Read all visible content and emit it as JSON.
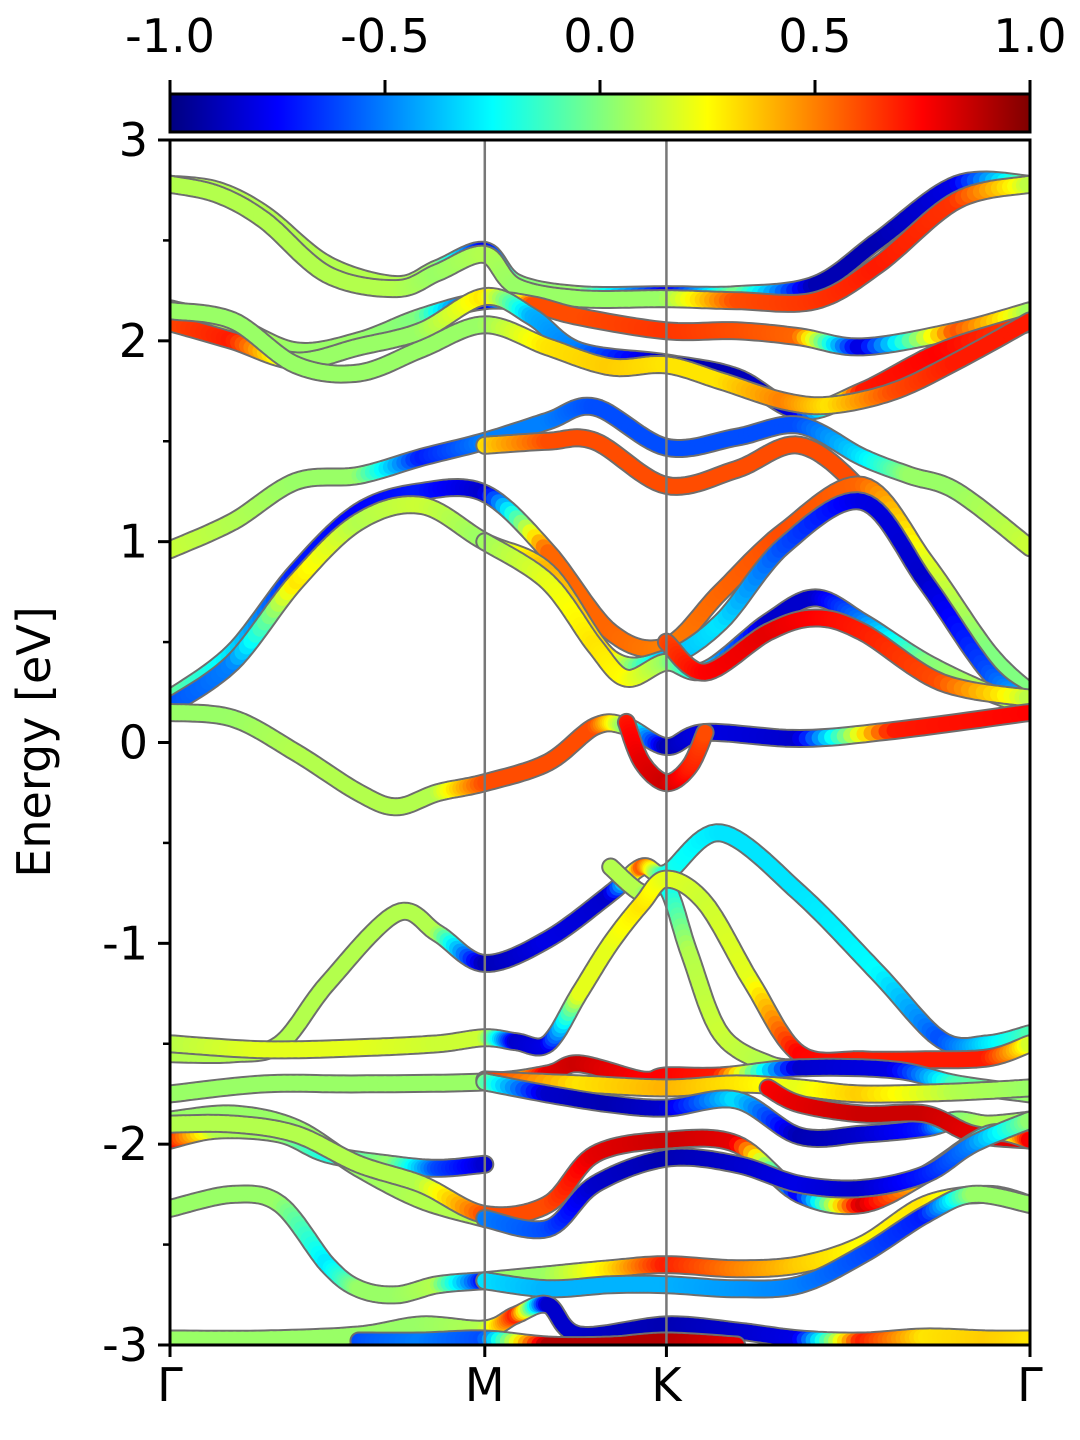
{
  "chart_data": {
    "type": "line",
    "ylabel": "Energy [eV]",
    "ylim": [
      -3,
      3
    ],
    "yticks": [
      "3",
      "2",
      "1",
      "0",
      "-1",
      "-2",
      "-3"
    ],
    "ytick_values": [
      3,
      2,
      1,
      0,
      -1,
      -2,
      -3
    ],
    "xlim": [
      0,
      2.732
    ],
    "xticks": [
      "Γ",
      "M",
      "K",
      "Γ"
    ],
    "xtick_values": [
      0,
      1.0,
      1.577,
      2.732
    ],
    "vlines_at": [
      1.0,
      1.577
    ],
    "colorbar": {
      "colormap": "jet",
      "range": [
        -1.0,
        1.0
      ],
      "labels": [
        "-1.0",
        "-0.5",
        "0.0",
        "0.5",
        "1.0"
      ],
      "label_values": [
        -1.0,
        -0.5,
        0.0,
        0.5,
        1.0
      ],
      "placement": "top"
    },
    "series": [
      {
        "x": [
          0,
          0.15,
          0.3,
          0.5,
          0.72,
          0.85,
          1.0,
          1.1,
          1.3,
          1.577,
          1.8,
          2.05,
          2.25,
          2.5,
          2.732
        ],
        "y": [
          2.78,
          2.75,
          2.63,
          2.38,
          2.28,
          2.36,
          2.45,
          2.29,
          2.23,
          2.23,
          2.23,
          2.28,
          2.5,
          2.78,
          2.78
        ],
        "c": [
          0.1,
          0.1,
          0.1,
          0.1,
          0.1,
          0.05,
          -0.8,
          0.0,
          0.05,
          -0.8,
          0.0,
          -0.9,
          -0.9,
          -0.8,
          0.1
        ]
      },
      {
        "x": [
          0,
          0.15,
          0.3,
          0.5,
          0.72,
          0.85,
          1.0,
          1.1,
          1.3,
          1.577,
          1.8,
          2.05,
          2.25,
          2.5,
          2.732
        ],
        "y": [
          2.78,
          2.73,
          2.6,
          2.33,
          2.26,
          2.34,
          2.43,
          2.27,
          2.21,
          2.21,
          2.2,
          2.2,
          2.38,
          2.7,
          2.78
        ],
        "c": [
          0.1,
          0.1,
          0.1,
          0.1,
          0.1,
          0.05,
          0.1,
          0.05,
          0.05,
          0.05,
          0.6,
          0.65,
          0.7,
          0.65,
          0.1
        ]
      },
      {
        "x": [
          0,
          0.2,
          0.4,
          0.6,
          0.8,
          1.0,
          1.15,
          1.3,
          1.577,
          1.8,
          2.0,
          2.2,
          2.5,
          2.732
        ],
        "y": [
          2.16,
          2.08,
          1.95,
          2.0,
          2.12,
          2.2,
          2.18,
          2.12,
          2.05,
          2.05,
          2.02,
          1.97,
          2.05,
          2.15
        ],
        "c": [
          0.05,
          0.1,
          0.05,
          0.05,
          0.0,
          -0.85,
          0.6,
          0.6,
          0.65,
          0.6,
          0.55,
          -0.85,
          0.6,
          0.05
        ]
      },
      {
        "x": [
          0,
          0.2,
          0.4,
          0.6,
          0.8,
          1.0,
          1.15,
          1.3,
          1.577,
          1.8,
          2.0,
          2.2,
          2.45,
          2.732
        ],
        "y": [
          2.09,
          2.0,
          1.9,
          1.97,
          2.05,
          2.22,
          2.12,
          1.95,
          1.89,
          1.82,
          1.65,
          1.75,
          1.95,
          2.09
        ],
        "c": [
          0.6,
          0.7,
          0.05,
          0.05,
          0.05,
          0.3,
          -0.4,
          -0.5,
          -0.9,
          -0.9,
          -0.8,
          0.7,
          0.75,
          0.6
        ]
      },
      {
        "x": [
          0,
          0.2,
          0.4,
          0.6,
          0.8,
          1.0,
          1.2,
          1.4,
          1.577,
          1.75,
          1.95,
          2.1,
          2.3,
          2.5,
          2.732
        ],
        "y": [
          2.15,
          2.1,
          1.88,
          1.84,
          1.96,
          2.08,
          1.97,
          1.87,
          1.88,
          1.8,
          1.7,
          1.68,
          1.75,
          1.9,
          2.1
        ],
        "c": [
          0.05,
          0.05,
          0.05,
          0.05,
          0.05,
          0.05,
          0.3,
          0.35,
          0.3,
          0.3,
          0.5,
          0.3,
          0.6,
          0.7,
          0.7
        ]
      },
      {
        "x": [
          0,
          0.2,
          0.4,
          0.6,
          0.8,
          1.0,
          1.2,
          1.35,
          1.577,
          1.8,
          2.0,
          2.2,
          2.35,
          2.5,
          2.732
        ],
        "y": [
          0.96,
          1.1,
          1.3,
          1.33,
          1.42,
          1.5,
          1.6,
          1.67,
          1.47,
          1.52,
          1.58,
          1.42,
          1.33,
          1.25,
          0.97
        ],
        "c": [
          0.15,
          0.1,
          0.05,
          0.05,
          -0.7,
          -0.5,
          -0.5,
          -0.6,
          -0.6,
          -0.6,
          -0.6,
          -0.3,
          0.05,
          0.05,
          0.15
        ]
      },
      {
        "x": [
          1.0,
          1.2,
          1.35,
          1.577,
          1.8,
          2.0,
          2.2,
          2.4,
          2.6,
          2.732
        ],
        "y": [
          1.48,
          1.5,
          1.5,
          1.28,
          1.36,
          1.48,
          1.25,
          0.85,
          0.4,
          0.22
        ],
        "c": [
          0.3,
          0.6,
          0.6,
          0.6,
          0.6,
          0.6,
          0.6,
          0.6,
          0.55,
          0.1
        ]
      },
      {
        "x": [
          0,
          0.2,
          0.4,
          0.6,
          0.8,
          1.0,
          1.2,
          1.4,
          1.577,
          1.75,
          1.95,
          2.2,
          2.4,
          2.6,
          2.732
        ],
        "y": [
          0.22,
          0.45,
          0.85,
          1.15,
          1.25,
          1.24,
          0.95,
          0.55,
          0.48,
          0.75,
          1.05,
          1.28,
          0.9,
          0.45,
          0.25
        ],
        "c": [
          0.0,
          -0.3,
          -0.7,
          -0.75,
          -0.7,
          -0.85,
          0.55,
          0.55,
          0.5,
          0.55,
          0.6,
          0.55,
          0.2,
          0.0,
          0.0
        ]
      },
      {
        "x": [
          0,
          0.2,
          0.4,
          0.6,
          0.8,
          1.0,
          1.2,
          1.4,
          1.577,
          1.75,
          1.95,
          2.2,
          2.4,
          2.6,
          2.732
        ],
        "y": [
          0.18,
          0.4,
          0.8,
          1.1,
          1.18,
          1.0,
          0.85,
          0.42,
          0.42,
          0.6,
          0.98,
          1.2,
          0.8,
          0.35,
          0.2
        ],
        "c": [
          -0.6,
          -0.5,
          0.3,
          0.1,
          0.15,
          0.05,
          0.4,
          0.3,
          -0.4,
          -0.3,
          -0.6,
          -0.8,
          -0.85,
          -0.6,
          -0.3
        ]
      },
      {
        "x": [
          1.0,
          1.2,
          1.35,
          1.45,
          1.577,
          1.7,
          1.9,
          2.05,
          2.2,
          2.4,
          2.6,
          2.732
        ],
        "y": [
          1.0,
          0.8,
          0.48,
          0.32,
          0.4,
          0.36,
          0.6,
          0.72,
          0.6,
          0.4,
          0.25,
          0.18
        ],
        "c": [
          0.05,
          0.2,
          0.3,
          0.25,
          0.05,
          -0.3,
          -0.85,
          -0.85,
          -0.5,
          0.0,
          0.1,
          0.1
        ]
      },
      {
        "x": [
          1.577,
          1.7,
          1.9,
          2.05,
          2.2,
          2.45,
          2.732
        ],
        "y": [
          0.5,
          0.35,
          0.55,
          0.62,
          0.55,
          0.3,
          0.22
        ],
        "c": [
          0.6,
          0.75,
          0.8,
          0.75,
          0.7,
          0.6,
          0.1
        ]
      },
      {
        "x": [
          0,
          0.2,
          0.4,
          0.6,
          0.72,
          0.85,
          1.0,
          1.2,
          1.35,
          1.45,
          1.577,
          1.7,
          2.0,
          2.3,
          2.732
        ],
        "y": [
          0.15,
          0.12,
          -0.05,
          -0.25,
          -0.32,
          -0.25,
          -0.2,
          -0.1,
          0.08,
          0.08,
          -0.02,
          0.05,
          0.02,
          0.06,
          0.15
        ],
        "c": [
          0.05,
          0.05,
          0.1,
          0.1,
          0.1,
          0.1,
          0.6,
          0.6,
          0.6,
          0.0,
          -0.9,
          -0.8,
          -0.85,
          0.7,
          0.75
        ]
      },
      {
        "x": [
          1.45,
          1.5,
          1.577,
          1.65,
          1.7
        ],
        "y": [
          0.1,
          -0.1,
          -0.2,
          -0.12,
          0.05
        ],
        "c": [
          0.7,
          0.8,
          0.85,
          0.7,
          0.6
        ]
      },
      {
        "x": [
          0,
          0.2,
          0.35,
          0.5,
          0.72,
          0.85,
          1.0,
          1.2,
          1.4,
          1.5,
          1.577,
          1.75,
          2.0,
          2.25,
          2.45,
          2.6,
          2.732
        ],
        "y": [
          -1.55,
          -1.55,
          -1.5,
          -1.2,
          -0.85,
          -0.95,
          -1.1,
          -0.98,
          -0.75,
          -0.62,
          -0.65,
          -0.45,
          -0.75,
          -1.15,
          -1.48,
          -1.5,
          -1.45
        ],
        "c": [
          0.1,
          0.1,
          0.1,
          0.1,
          0.1,
          0.1,
          -0.9,
          -0.8,
          -0.85,
          0.6,
          -0.2,
          -0.3,
          -0.3,
          -0.25,
          -0.6,
          -0.3,
          -0.1
        ]
      },
      {
        "x": [
          1.4,
          1.5,
          1.577,
          1.65,
          1.75,
          1.9,
          2.0
        ],
        "y": [
          -0.62,
          -0.75,
          -0.72,
          -1.05,
          -1.45,
          -1.6,
          -1.62
        ],
        "c": [
          0.1,
          0.1,
          -0.3,
          0.1,
          0.15,
          0.1,
          0.1
        ]
      },
      {
        "x": [
          0,
          0.3,
          0.6,
          0.85,
          1.0,
          1.1,
          1.2,
          1.3,
          1.4,
          1.5,
          1.577,
          1.7,
          1.85,
          2.0,
          2.2,
          2.4,
          2.6,
          2.732
        ],
        "y": [
          -1.5,
          -1.53,
          -1.52,
          -1.5,
          -1.47,
          -1.49,
          -1.5,
          -1.25,
          -1.0,
          -0.8,
          -0.68,
          -0.8,
          -1.2,
          -1.55,
          -1.58,
          -1.58,
          -1.57,
          -1.5
        ],
        "c": [
          0.1,
          0.2,
          0.2,
          0.15,
          0.15,
          -0.85,
          -0.8,
          0.2,
          0.2,
          0.3,
          0.2,
          0.15,
          0.2,
          0.75,
          0.7,
          0.7,
          0.7,
          0.15
        ]
      },
      {
        "x": [
          0,
          0.3,
          0.6,
          1.0,
          1.2,
          1.3,
          1.5,
          1.577,
          1.75,
          2.0,
          2.3,
          2.5,
          2.732
        ],
        "y": [
          -1.75,
          -1.7,
          -1.7,
          -1.69,
          -1.65,
          -1.6,
          -1.68,
          -1.66,
          -1.66,
          -1.62,
          -1.63,
          -1.7,
          -1.75
        ],
        "c": [
          0.05,
          0.05,
          0.05,
          0.05,
          0.8,
          0.85,
          0.75,
          0.75,
          0.7,
          -0.85,
          -0.8,
          -0.1,
          0.05
        ]
      },
      {
        "x": [
          1.0,
          1.3,
          1.577,
          1.8,
          2.0,
          2.2,
          2.5,
          2.732
        ],
        "y": [
          -1.68,
          -1.7,
          -1.72,
          -1.7,
          -1.72,
          -1.75,
          -1.74,
          -1.72
        ],
        "c": [
          0.7,
          0.3,
          0.4,
          0.3,
          0.2,
          0.35,
          0.1,
          0.05
        ]
      },
      {
        "x": [
          1.0,
          1.2,
          1.4,
          1.577,
          1.8,
          2.0,
          2.2,
          2.4,
          2.5,
          2.6,
          2.732
        ],
        "y": [
          -1.69,
          -1.75,
          -1.8,
          -1.82,
          -1.78,
          -1.96,
          -1.95,
          -1.92,
          -1.88,
          -1.9,
          -1.88
        ],
        "c": [
          0.0,
          -0.85,
          -0.9,
          -0.85,
          -0.3,
          -0.9,
          -0.85,
          -0.7,
          0.0,
          0.1,
          0.05
        ]
      },
      {
        "x": [
          1.9,
          2.0,
          2.2,
          2.4,
          2.55,
          2.732
        ],
        "y": [
          -1.72,
          -1.8,
          -1.85,
          -1.85,
          -1.95,
          -1.98
        ],
        "c": [
          0.75,
          0.8,
          0.85,
          0.85,
          0.8,
          0.8
        ]
      },
      {
        "x": [
          0,
          0.15,
          0.35,
          0.5,
          0.7,
          0.85,
          1.0
        ],
        "y": [
          -1.98,
          -1.93,
          -1.95,
          -2.05,
          -2.1,
          -2.12,
          -2.1
        ],
        "c": [
          0.8,
          0.1,
          0.05,
          -0.2,
          0.05,
          -0.6,
          -0.85
        ]
      },
      {
        "x": [
          0,
          0.2,
          0.4,
          0.6,
          0.8,
          1.0
        ],
        "y": [
          -1.88,
          -1.85,
          -1.92,
          -2.12,
          -2.28,
          -2.37
        ],
        "c": [
          0.05,
          0.05,
          0.05,
          0.05,
          0.1,
          0.1
        ]
      },
      {
        "x": [
          0,
          0.2,
          0.4,
          0.6,
          0.8,
          1.0,
          1.2,
          1.35,
          1.577,
          1.8,
          2.0,
          2.2,
          2.4,
          2.6,
          2.732
        ],
        "y": [
          -1.9,
          -1.9,
          -1.95,
          -2.1,
          -2.2,
          -2.35,
          -2.3,
          -2.05,
          -1.98,
          -2.0,
          -2.25,
          -2.3,
          -2.15,
          -1.95,
          -1.98
        ],
        "c": [
          0.1,
          0.1,
          0.1,
          0.1,
          0.1,
          0.6,
          0.6,
          0.8,
          0.85,
          0.8,
          -0.8,
          0.85,
          0.3,
          -0.3,
          0.8
        ]
      },
      {
        "x": [
          1.0,
          1.2,
          1.35,
          1.577,
          1.8,
          2.0,
          2.2,
          2.4,
          2.55,
          2.732
        ],
        "y": [
          -2.37,
          -2.42,
          -2.2,
          -2.07,
          -2.1,
          -2.2,
          -2.22,
          -2.15,
          -2.0,
          -1.88
        ],
        "c": [
          -0.5,
          -0.6,
          -0.85,
          -0.9,
          -0.85,
          -0.8,
          -0.85,
          -0.7,
          -0.5,
          0.05
        ]
      },
      {
        "x": [
          0,
          0.2,
          0.35,
          0.5,
          0.6,
          0.72,
          0.85,
          1.0
        ],
        "y": [
          -2.32,
          -2.25,
          -2.3,
          -2.6,
          -2.72,
          -2.75,
          -2.7,
          -2.68
        ],
        "c": [
          0.05,
          0.05,
          0.05,
          -0.3,
          0.05,
          0.05,
          0.1,
          -0.8
        ]
      },
      {
        "x": [
          1.0,
          1.2,
          1.4,
          1.577,
          1.8,
          2.0,
          2.2,
          2.4,
          2.6,
          2.732
        ],
        "y": [
          -2.68,
          -2.65,
          -2.62,
          -2.6,
          -2.62,
          -2.6,
          -2.5,
          -2.3,
          -2.25,
          -2.3
        ],
        "c": [
          0.05,
          0.05,
          0.3,
          0.7,
          0.5,
          0.35,
          0.25,
          0.3,
          0.1,
          0.05
        ]
      },
      {
        "x": [
          1.0,
          1.2,
          1.4,
          1.577,
          1.8,
          2.0,
          2.2,
          2.4,
          2.55,
          2.732
        ],
        "y": [
          -2.68,
          -2.72,
          -2.7,
          -2.7,
          -2.72,
          -2.7,
          -2.55,
          -2.35,
          -2.25,
          -2.3
        ],
        "c": [
          -0.3,
          -0.4,
          -0.4,
          -0.4,
          -0.45,
          -0.5,
          -0.6,
          -0.7,
          0.05,
          0.05
        ]
      },
      {
        "x": [
          0,
          0.3,
          0.6,
          0.8,
          1.0,
          1.1,
          1.2,
          1.3,
          1.577,
          1.8,
          2.0,
          2.2,
          2.4,
          2.6,
          2.732
        ],
        "y": [
          -2.97,
          -2.97,
          -2.95,
          -2.9,
          -2.92,
          -2.85,
          -2.8,
          -2.95,
          -2.9,
          -2.93,
          -2.97,
          -2.98,
          -2.96,
          -2.97,
          -2.97
        ],
        "c": [
          0.05,
          0.05,
          0.05,
          0.05,
          0.1,
          0.7,
          -0.85,
          -0.85,
          -0.9,
          -0.85,
          -0.8,
          0.7,
          0.3,
          0.35,
          0.3
        ]
      },
      {
        "x": [
          0.6,
          0.8,
          1.0,
          1.2,
          1.4,
          1.577,
          1.8
        ],
        "y": [
          -2.98,
          -2.98,
          -2.97,
          -3.0,
          -3.0,
          -2.98,
          -3.0
        ],
        "c": [
          -0.6,
          -0.5,
          -0.6,
          0.9,
          0.9,
          0.9,
          0.8
        ]
      }
    ]
  }
}
